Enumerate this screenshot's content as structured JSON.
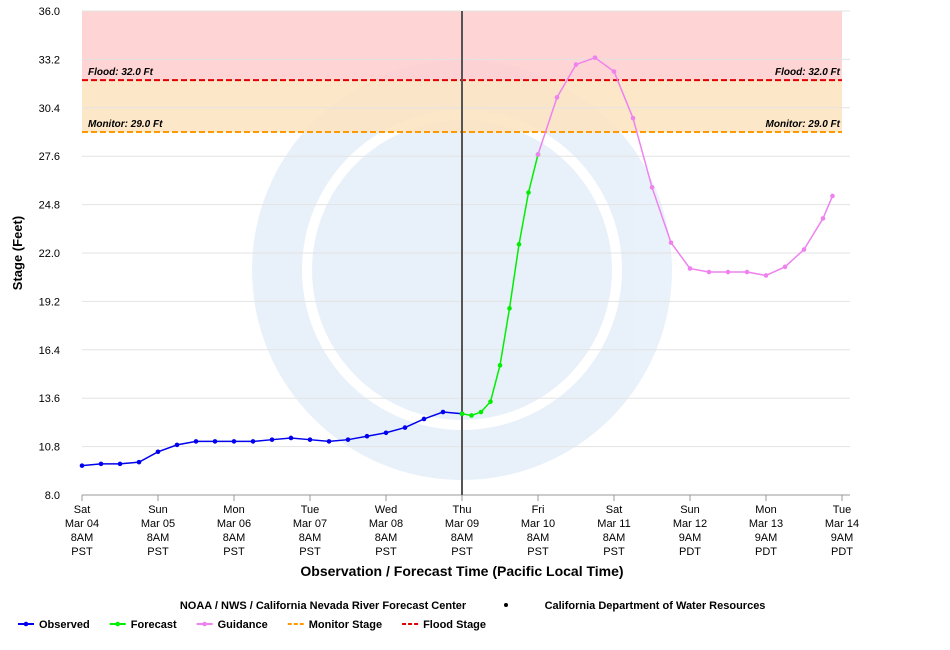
{
  "chart_data": {
    "type": "line",
    "y_label": "Stage (Feet)",
    "x_label": "Observation / Forecast Time (Pacific Local Time)",
    "credits": [
      "NOAA / NWS / California Nevada River Forecast Center",
      "California Department of Water Resources"
    ],
    "ylim": [
      8,
      36
    ],
    "yticks": [
      {
        "value": 8,
        "label": "8.0"
      },
      10.8,
      13.6,
      16.4,
      19.2,
      {
        "value": 22,
        "label": "22.0"
      },
      24.8,
      27.6,
      30.4,
      33.2,
      {
        "value": 36,
        "label": "36.0"
      }
    ],
    "xlim": [
      "Mar 04 08:00",
      "Mar 14 08:00"
    ],
    "xticks": [
      {
        "value": "Mar 04 08:00",
        "label": [
          "Sat",
          "Mar 04",
          "8AM",
          "PST"
        ]
      },
      {
        "value": "Mar 05 08:00",
        "label": [
          "Sun",
          "Mar 05",
          "8AM",
          "PST"
        ]
      },
      {
        "value": "Mar 06 08:00",
        "label": [
          "Mon",
          "Mar 06",
          "8AM",
          "PST"
        ]
      },
      {
        "value": "Mar 07 08:00",
        "label": [
          "Tue",
          "Mar 07",
          "8AM",
          "PST"
        ]
      },
      {
        "value": "Mar 08 08:00",
        "label": [
          "Wed",
          "Mar 08",
          "8AM",
          "PST"
        ]
      },
      {
        "value": "Mar 09 08:00",
        "label": [
          "Thu",
          "Mar 09",
          "8AM",
          "PST"
        ]
      },
      {
        "value": "Mar 10 08:00",
        "label": [
          "Fri",
          "Mar 10",
          "8AM",
          "PST"
        ]
      },
      {
        "value": "Mar 11 08:00",
        "label": [
          "Sat",
          "Mar 11",
          "8AM",
          "PST"
        ]
      },
      {
        "value": "Mar 12 08:00",
        "label": [
          "Sun",
          "Mar 12",
          "9AM",
          "PDT"
        ]
      },
      {
        "value": "Mar 13 08:00",
        "label": [
          "Mon",
          "Mar 13",
          "9AM",
          "PDT"
        ]
      },
      {
        "value": "Mar 14 08:00",
        "label": [
          "Tue",
          "Mar 14",
          "9AM",
          "PDT"
        ]
      }
    ],
    "now": "Mar 09 08:00",
    "grid": true,
    "thresholds": [
      {
        "name": "Monitor Stage",
        "label": "Monitor: 29.0 Ft",
        "value": 29,
        "color": "#ff9900",
        "band": "#fde3c0"
      },
      {
        "name": "Flood Stage",
        "label": "Flood: 32.0 Ft",
        "value": 32,
        "color": "#e00000",
        "band": "#ffcccc"
      }
    ],
    "series": [
      {
        "name": "Observed",
        "color": "#0000ee",
        "x": [
          "Mar 04 08:00",
          "Mar 04 14:00",
          "Mar 04 20:00",
          "Mar 05 02:00",
          "Mar 05 08:00",
          "Mar 05 14:00",
          "Mar 05 20:00",
          "Mar 06 02:00",
          "Mar 06 08:00",
          "Mar 06 14:00",
          "Mar 06 20:00",
          "Mar 07 02:00",
          "Mar 07 08:00",
          "Mar 07 14:00",
          "Mar 07 20:00",
          "Mar 08 02:00",
          "Mar 08 08:00",
          "Mar 08 14:00",
          "Mar 08 20:00",
          "Mar 09 02:00",
          "Mar 09 08:00"
        ],
        "values": [
          9.7,
          9.8,
          9.8,
          9.9,
          10.5,
          10.9,
          11.1,
          11.1,
          11.1,
          11.1,
          11.2,
          11.3,
          11.2,
          11.1,
          11.2,
          11.4,
          11.6,
          11.9,
          12.4,
          12.8,
          12.7
        ]
      },
      {
        "name": "Forecast",
        "color": "#00ee00",
        "x": [
          "Mar 09 08:00",
          "Mar 09 11:00",
          "Mar 09 14:00",
          "Mar 09 17:00",
          "Mar 09 20:00",
          "Mar 09 23:00",
          "Mar 10 02:00",
          "Mar 10 05:00",
          "Mar 10 08:00"
        ],
        "values": [
          12.7,
          12.6,
          12.8,
          13.4,
          15.5,
          18.8,
          22.5,
          25.5,
          27.7
        ]
      },
      {
        "name": "Guidance",
        "color": "#ee82ee",
        "x": [
          "Mar 10 08:00",
          "Mar 10 14:00",
          "Mar 10 20:00",
          "Mar 11 02:00",
          "Mar 11 08:00",
          "Mar 11 14:00",
          "Mar 11 20:00",
          "Mar 12 02:00",
          "Mar 12 08:00",
          "Mar 12 14:00",
          "Mar 12 20:00",
          "Mar 13 02:00",
          "Mar 13 08:00",
          "Mar 13 14:00",
          "Mar 13 20:00",
          "Mar 14 02:00",
          "Mar 14 05:00"
        ],
        "values": [
          27.7,
          31.0,
          32.9,
          33.3,
          32.5,
          29.8,
          25.8,
          22.6,
          21.1,
          20.9,
          20.9,
          20.9,
          20.7,
          21.2,
          22.2,
          24.0,
          25.3
        ]
      }
    ]
  }
}
